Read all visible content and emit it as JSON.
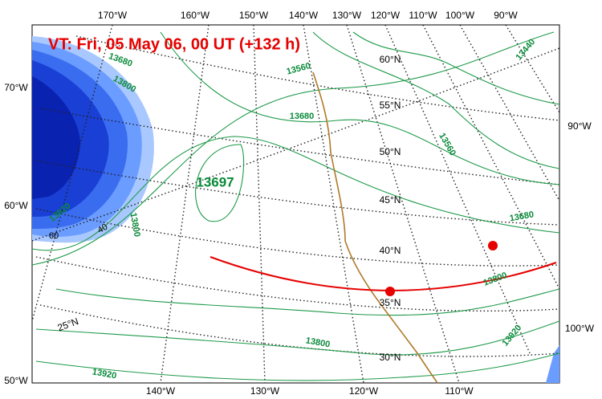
{
  "map": {
    "title": "VT:  Fri, 05 May 06, 00 UT (+132 h)",
    "top_lon_labels": [
      "170°W",
      "160°W",
      "150°W",
      "140°W",
      "130°W",
      "120°W",
      "110°W",
      "100°W",
      "90°W"
    ],
    "bottom_lon_labels": [
      "140°W",
      "130°W",
      "120°W",
      "110°W"
    ],
    "left_labels": [
      "70°W",
      "60°W",
      "50°W"
    ],
    "right_labels": [
      "90°W",
      "100°W"
    ],
    "lat_labels": [
      "60°N",
      "55°N",
      "50°N",
      "45°N",
      "40°N",
      "35°N",
      "30°N",
      "25°N"
    ],
    "contour_labels": [
      "13440",
      "13560",
      "13680",
      "13560",
      "13680",
      "13800",
      "13920",
      "13800",
      "13920",
      "13920",
      "13800",
      "13800",
      "13680"
    ],
    "center_label": "13697",
    "shading_labels": [
      "60",
      "40"
    ]
  }
}
